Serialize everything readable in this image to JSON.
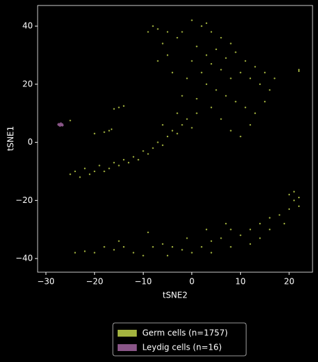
{
  "chart_data": {
    "type": "scatter",
    "xlabel": "tSNE2",
    "ylabel": "tSNE1",
    "xlim": [
      -31.7,
      24.8
    ],
    "ylim": [
      -44.7,
      47.1
    ],
    "xticks": [
      {
        "value": -30,
        "label": "−30"
      },
      {
        "value": -20,
        "label": "−20"
      },
      {
        "value": -10,
        "label": "−10"
      },
      0,
      10,
      20
    ],
    "yticks": [
      {
        "value": -40,
        "label": "−40"
      },
      {
        "value": -20,
        "label": "−20"
      },
      0,
      20,
      40
    ],
    "legend": "bottom",
    "series": [
      {
        "name": "Germ cells (n=1757)",
        "color": "#a3b33f",
        "x": [
          2,
          4,
          6,
          8,
          1,
          3,
          5,
          7,
          9,
          11,
          13,
          10,
          12,
          14,
          8,
          6,
          4,
          2,
          0,
          -1,
          3,
          5,
          7,
          9,
          11,
          13,
          15,
          16,
          -3,
          -5,
          -4,
          -2,
          1,
          4,
          6,
          8,
          10,
          12,
          -2,
          0,
          3,
          -6,
          -7,
          15,
          17,
          -8,
          -7,
          -9,
          -5,
          22,
          22,
          -25,
          -24,
          -23,
          -22,
          -21,
          -20,
          -19,
          -18,
          -17,
          -16,
          -15,
          -14,
          -13,
          -12,
          -11,
          -10,
          -9,
          -8,
          -7,
          -6,
          -5,
          -4,
          -3,
          -2,
          -1,
          0,
          1,
          -3,
          -6,
          -15,
          -14,
          -16,
          -17,
          -18,
          -16.5,
          -20,
          -25,
          -24,
          -22,
          -20,
          -18,
          -16,
          -14,
          -12,
          -10,
          -9,
          -8,
          -6,
          -4,
          -2,
          0,
          2,
          4,
          6,
          8,
          10,
          12,
          14,
          16,
          18,
          20,
          21,
          22,
          21,
          20,
          22,
          12,
          8,
          4,
          -5,
          7,
          3,
          16,
          19,
          14,
          -1,
          -15
        ],
        "y": [
          40,
          38,
          36,
          34,
          33,
          30,
          32,
          29,
          31,
          28,
          26,
          24,
          22,
          20,
          22,
          25,
          27,
          24,
          28,
          22,
          20,
          18,
          16,
          14,
          12,
          10,
          14,
          18,
          36,
          30,
          24,
          16,
          15,
          12,
          8,
          4,
          2,
          6,
          38,
          42,
          41,
          34,
          28,
          24,
          22,
          40,
          39,
          38,
          38,
          25,
          24.5,
          -11,
          -10,
          -12,
          -9,
          -11,
          -10,
          -8,
          -10,
          -9,
          -7,
          -8,
          -6,
          -7,
          -5,
          -6,
          -3,
          -4,
          -2,
          0,
          -1,
          2,
          4,
          3,
          6,
          8,
          5,
          10,
          10,
          6,
          12,
          12.5,
          11.5,
          4,
          3.5,
          4.5,
          3,
          7.5,
          -38,
          -37.5,
          -38,
          -36,
          -37,
          -36,
          -38,
          -39,
          -31,
          -36,
          -35,
          -36,
          -37,
          -38,
          -36,
          -34,
          -33,
          -30,
          -32,
          -30,
          -28,
          -26,
          -25,
          -23,
          -20,
          -19,
          -17,
          -18,
          -22,
          -35,
          -36,
          -38,
          -39,
          -28,
          -30,
          -30,
          -28,
          -33,
          -33,
          -34
        ]
      },
      {
        "name": "Leydig cells (n=16)",
        "color": "#8a5688",
        "x": [
          -27.2,
          -27,
          -26.8,
          -26.6,
          -27.4,
          -26.9,
          -27.1,
          -26.7,
          -27.3,
          -26.5,
          -27,
          -26.8,
          -27.5,
          -26.6,
          -27.2,
          -26.9
        ],
        "y": [
          6.1,
          6.4,
          5.8,
          6.3,
          5.9,
          6.6,
          5.6,
          6.0,
          6.4,
          5.9,
          6.0,
          6.2,
          6.2,
          5.7,
          5.8,
          6.3
        ]
      }
    ]
  }
}
